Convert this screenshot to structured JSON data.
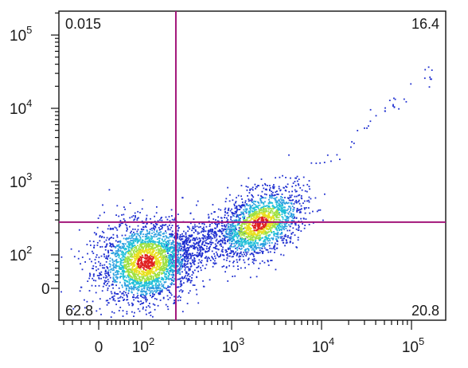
{
  "chart_data": {
    "type": "scatter",
    "title": "",
    "xlabel": "",
    "ylabel": "",
    "x_scale": "biexponential",
    "y_scale": "biexponential",
    "x_ticks": [
      {
        "value": 0,
        "label": "0",
        "exp": ""
      },
      {
        "value": 100,
        "label": "10",
        "exp": "2"
      },
      {
        "value": 1000,
        "label": "10",
        "exp": "3"
      },
      {
        "value": 10000,
        "label": "10",
        "exp": "4"
      },
      {
        "value": 100000,
        "label": "10",
        "exp": "5"
      }
    ],
    "y_ticks": [
      {
        "value": 0,
        "label": "0",
        "exp": ""
      },
      {
        "value": 100,
        "label": "10",
        "exp": "2"
      },
      {
        "value": 1000,
        "label": "10",
        "exp": "3"
      },
      {
        "value": 10000,
        "label": "10",
        "exp": "4"
      },
      {
        "value": 100000,
        "label": "10",
        "exp": "5"
      }
    ],
    "gates": {
      "x": 240,
      "y": 280
    },
    "quadrants": [
      {
        "position": "upper-left",
        "value": "0.015"
      },
      {
        "position": "upper-right",
        "value": "16.4"
      },
      {
        "position": "lower-left",
        "value": "62.8"
      },
      {
        "position": "lower-right",
        "value": "20.8"
      }
    ],
    "populations": [
      {
        "name": "",
        "center_x": 110,
        "center_y": 80,
        "events": "dense"
      },
      {
        "name": "",
        "center_x": 2000,
        "center_y": 270,
        "events": "dense"
      }
    ],
    "grid": false,
    "colors": {
      "gate": "#a3167a",
      "density_low": "#1f2fd0",
      "density_mid": "#20c0d8",
      "density_high": "#e8e020",
      "density_peak": "#e02020"
    }
  }
}
